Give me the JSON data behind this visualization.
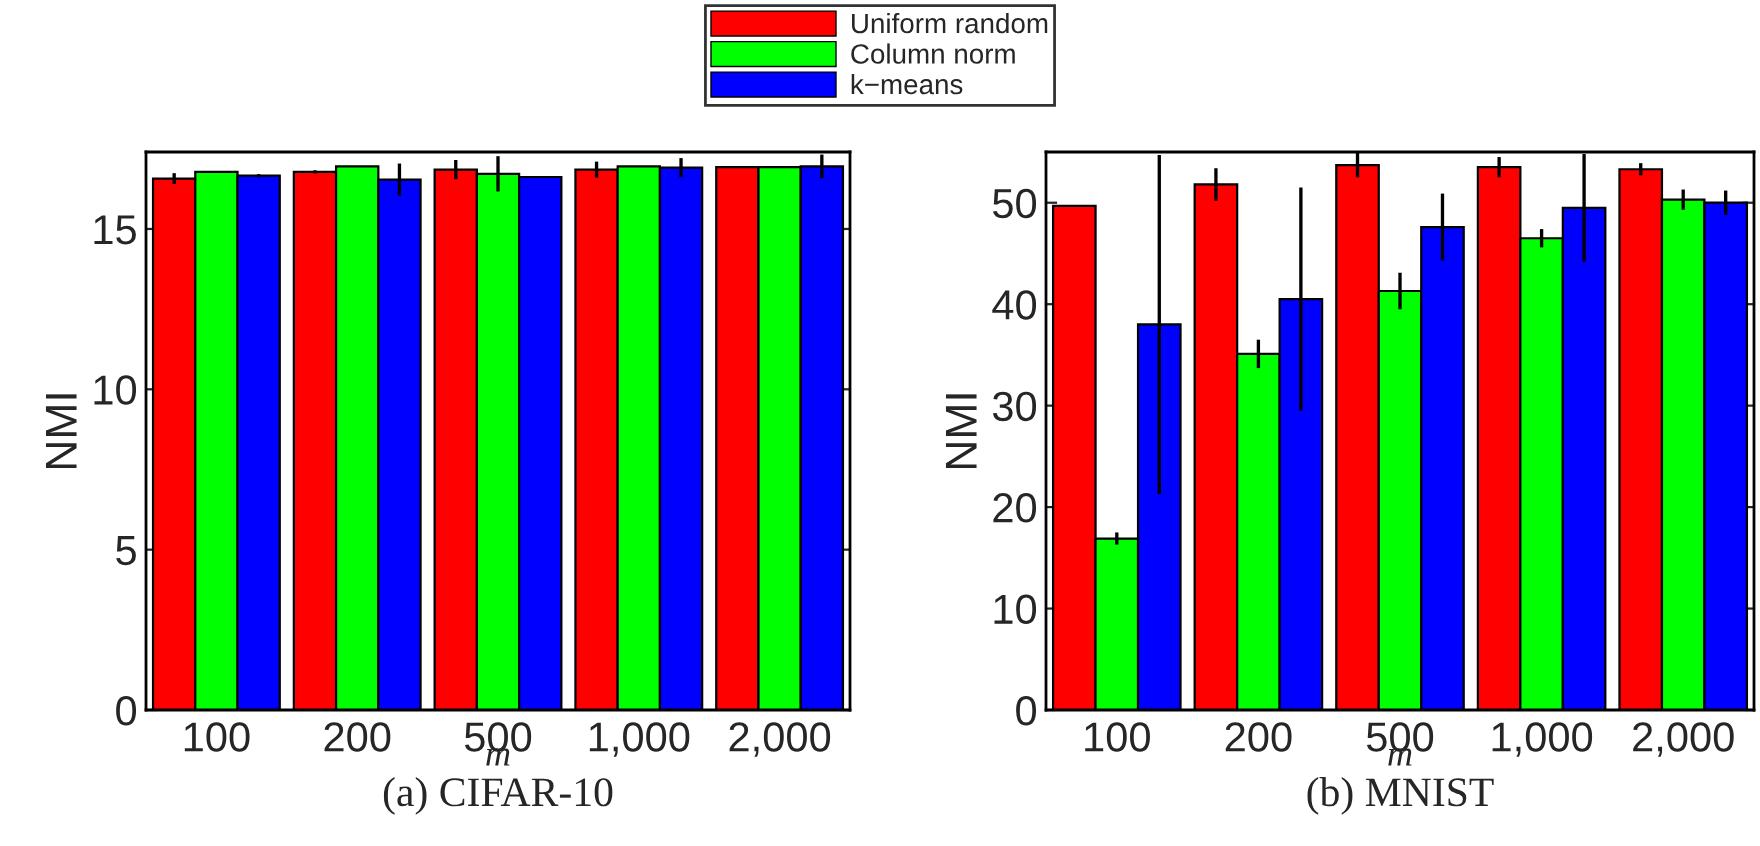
{
  "chart_data": [
    {
      "type": "bar",
      "title": "(a) CIFAR-10",
      "xlabel": "m",
      "ylabel": "NMI",
      "categories": [
        "100",
        "200",
        "500",
        "1,000",
        "2,000"
      ],
      "ylim": [
        0,
        17.4
      ],
      "yticks": [
        0,
        5,
        10,
        15
      ],
      "grid": false,
      "legend": "top",
      "series": [
        {
          "name": "Uniform random",
          "color": "#ff0000",
          "values": [
            16.57,
            16.78,
            16.85,
            16.85,
            16.93
          ],
          "errors": [
            0.17,
            0.05,
            0.3,
            0.25,
            0
          ]
        },
        {
          "name": "Column norm",
          "color": "#00ff00",
          "values": [
            16.78,
            16.95,
            16.72,
            16.95,
            16.93
          ],
          "errors": [
            0,
            0,
            0.55,
            0,
            0
          ]
        },
        {
          "name": "k−means",
          "color": "#0000ff",
          "values": [
            16.66,
            16.54,
            16.62,
            16.91,
            16.95
          ],
          "errors": [
            0.05,
            0.5,
            0,
            0.3,
            0.37
          ]
        }
      ]
    },
    {
      "type": "bar",
      "title": "(b) MNIST",
      "xlabel": "m",
      "ylabel": "NMI",
      "categories": [
        "100",
        "200",
        "500",
        "1,000",
        "2,000"
      ],
      "ylim": [
        0,
        55
      ],
      "yticks": [
        0,
        10,
        20,
        30,
        40,
        50
      ],
      "grid": false,
      "series": [
        {
          "color": "#ff0000",
          "values": [
            49.7,
            51.8,
            53.7,
            53.5,
            53.3
          ],
          "errors": [
            0,
            1.6,
            1.2,
            1.0,
            0.6
          ]
        },
        {
          "color": "#00ff00",
          "values": [
            16.9,
            35.1,
            41.3,
            46.5,
            50.3
          ],
          "errors": [
            0.6,
            1.4,
            1.8,
            0.9,
            1.0
          ]
        },
        {
          "color": "#0000ff",
          "values": [
            38.0,
            40.5,
            47.6,
            49.5,
            50.0
          ],
          "errors": [
            16.7,
            11,
            3.3,
            5.3,
            1.2
          ]
        }
      ]
    }
  ]
}
